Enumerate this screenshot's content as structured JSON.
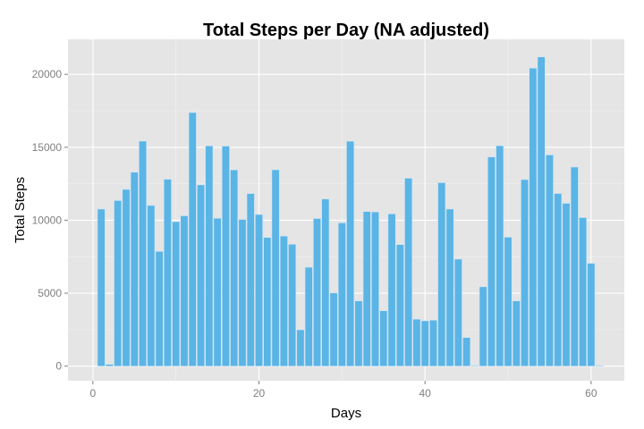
{
  "chart_data": {
    "type": "bar",
    "title": "Total Steps per Day (NA adjusted)",
    "xlabel": "Days",
    "ylabel": "Total Steps",
    "x": [
      1,
      2,
      3,
      4,
      5,
      6,
      7,
      8,
      9,
      10,
      11,
      12,
      13,
      14,
      15,
      16,
      17,
      18,
      19,
      20,
      21,
      22,
      23,
      24,
      25,
      26,
      27,
      28,
      29,
      30,
      31,
      32,
      33,
      34,
      35,
      36,
      37,
      38,
      39,
      40,
      41,
      42,
      43,
      44,
      45,
      46,
      47,
      48,
      49,
      50,
      51,
      52,
      53,
      54,
      55,
      56,
      57,
      58,
      59,
      60,
      61
    ],
    "values": [
      10766,
      126,
      11352,
      12116,
      13294,
      15420,
      11015,
      7867,
      12811,
      9900,
      10304,
      17382,
      12426,
      15098,
      10139,
      15084,
      13452,
      10056,
      11829,
      10395,
      8821,
      13460,
      8918,
      8355,
      2492,
      6778,
      10119,
      11458,
      5018,
      9819,
      15414,
      4472,
      10600,
      10571,
      3794,
      10437,
      8334,
      12883,
      3219,
      3107,
      3153,
      12574,
      10765,
      7336,
      1960,
      0,
      5441,
      14339,
      15110,
      8841,
      4472,
      12787,
      20427,
      21194,
      14478,
      11834,
      11162,
      13646,
      10183,
      7047,
      0
    ],
    "xlim": [
      -3,
      64
    ],
    "ylim": [
      -1000,
      22400
    ],
    "xticks": [
      0,
      20,
      40,
      60
    ],
    "yticks": [
      0,
      5000,
      10000,
      15000,
      20000
    ],
    "xtick_labels": [
      "0",
      "20",
      "40",
      "60"
    ],
    "ytick_labels": [
      "0",
      "5000",
      "10000",
      "15000",
      "20000"
    ],
    "grid": true,
    "colors": {
      "bar_fill": "#5ab4e6",
      "bar_edge": "#cfe5f2",
      "panel_bg": "#e5e5e5",
      "grid_major": "#ffffff",
      "grid_minor": "#f2f2f2"
    }
  }
}
